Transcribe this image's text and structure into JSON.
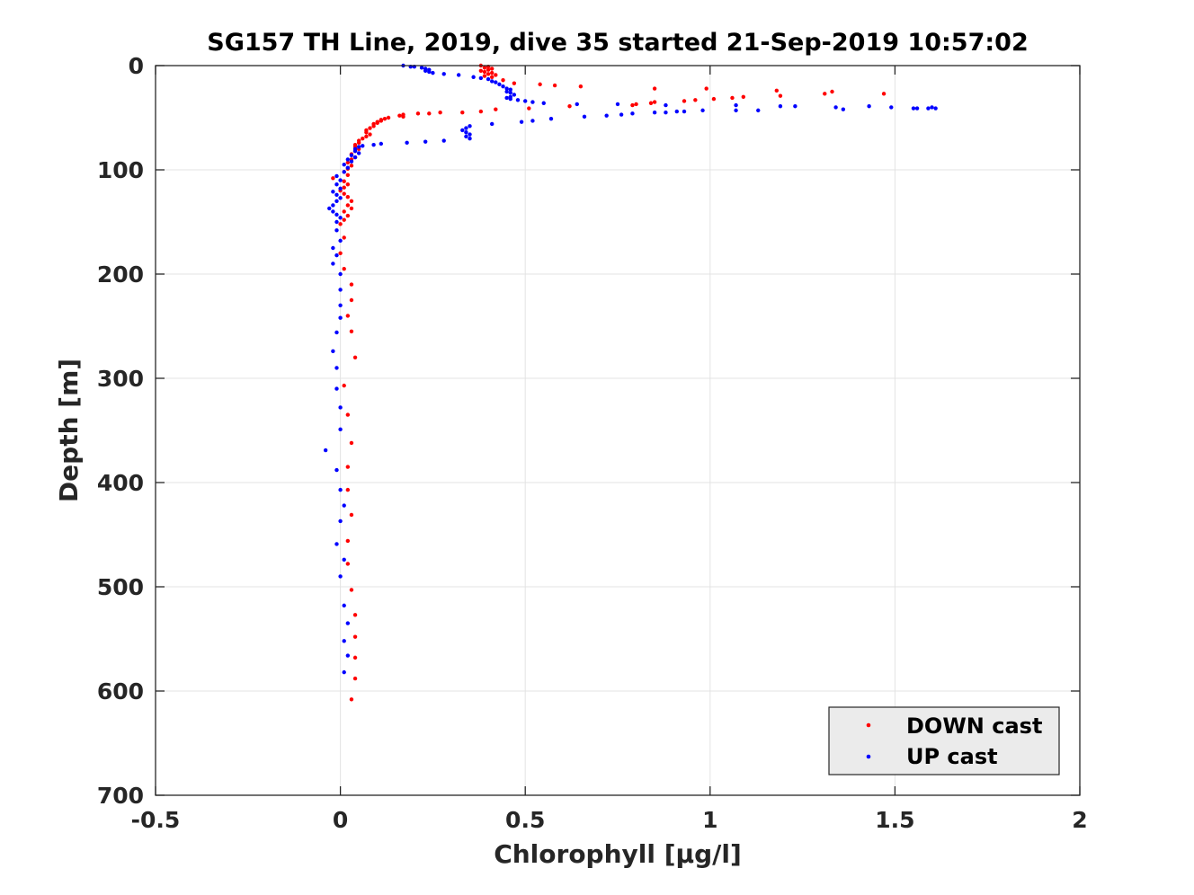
{
  "chart_data": {
    "type": "scatter",
    "title": "SG157 TH Line, 2019, dive 35 started 21-Sep-2019 10:57:02",
    "xlabel": "Chlorophyll [μg/l]",
    "ylabel": "Depth [m]",
    "xlim": [
      -0.5,
      2
    ],
    "ylim": [
      0,
      700
    ],
    "y_reversed": true,
    "xticks": [
      "-0.5",
      "0",
      "0.5",
      "1",
      "1.5",
      "2"
    ],
    "xtick_values": [
      -0.5,
      0,
      0.5,
      1,
      1.5,
      2
    ],
    "yticks": [
      "0",
      "100",
      "200",
      "300",
      "400",
      "500",
      "600",
      "700"
    ],
    "ytick_values": [
      0,
      100,
      200,
      300,
      400,
      500,
      600,
      700
    ],
    "grid": true,
    "legend_position": "bottom-right",
    "series": [
      {
        "name": "DOWN cast",
        "color": "#ff0000",
        "points": [
          [
            0.38,
            0
          ],
          [
            0.4,
            1
          ],
          [
            0.39,
            2
          ],
          [
            0.41,
            3
          ],
          [
            0.4,
            4
          ],
          [
            0.38,
            5
          ],
          [
            0.39,
            6
          ],
          [
            0.41,
            7
          ],
          [
            0.4,
            8
          ],
          [
            0.42,
            9
          ],
          [
            0.39,
            10
          ],
          [
            0.41,
            11
          ],
          [
            0.44,
            14
          ],
          [
            0.47,
            17
          ],
          [
            0.54,
            18
          ],
          [
            0.58,
            19
          ],
          [
            0.65,
            20
          ],
          [
            0.99,
            22
          ],
          [
            0.85,
            22
          ],
          [
            1.18,
            24
          ],
          [
            1.33,
            25
          ],
          [
            1.31,
            27
          ],
          [
            1.47,
            27
          ],
          [
            1.19,
            29
          ],
          [
            1.09,
            30
          ],
          [
            1.06,
            31
          ],
          [
            1.01,
            32
          ],
          [
            0.96,
            33
          ],
          [
            0.93,
            34
          ],
          [
            0.85,
            35
          ],
          [
            0.84,
            36
          ],
          [
            0.8,
            37
          ],
          [
            0.79,
            38
          ],
          [
            0.62,
            39
          ],
          [
            0.51,
            41
          ],
          [
            0.42,
            42
          ],
          [
            0.38,
            44
          ],
          [
            0.33,
            45
          ],
          [
            0.27,
            45
          ],
          [
            0.24,
            46
          ],
          [
            0.21,
            46
          ],
          [
            0.17,
            47
          ],
          [
            0.16,
            48
          ],
          [
            0.17,
            49
          ],
          [
            0.13,
            50
          ],
          [
            0.12,
            51
          ],
          [
            0.11,
            52
          ],
          [
            0.11,
            53
          ],
          [
            0.1,
            54
          ],
          [
            0.1,
            55
          ],
          [
            0.09,
            56
          ],
          [
            0.09,
            58
          ],
          [
            0.08,
            60
          ],
          [
            0.07,
            62
          ],
          [
            0.07,
            64
          ],
          [
            0.08,
            66
          ],
          [
            0.07,
            68
          ],
          [
            0.06,
            70
          ],
          [
            0.05,
            72
          ],
          [
            0.05,
            74
          ],
          [
            0.04,
            76
          ],
          [
            0.04,
            78
          ],
          [
            0.05,
            80
          ],
          [
            0.04,
            82
          ],
          [
            0.03,
            85
          ],
          [
            0.04,
            88
          ],
          [
            0.03,
            90
          ],
          [
            0.02,
            93
          ],
          [
            0.03,
            96
          ],
          [
            0.02,
            99
          ],
          [
            0.01,
            102
          ],
          [
            0.02,
            105
          ],
          [
            -0.02,
            108
          ],
          [
            0.01,
            111
          ],
          [
            0.02,
            114
          ],
          [
            0.01,
            117
          ],
          [
            0.0,
            120
          ],
          [
            0.01,
            123
          ],
          [
            0.02,
            126
          ],
          [
            0.03,
            130
          ],
          [
            0.02,
            134
          ],
          [
            0.03,
            137
          ],
          [
            0.01,
            140
          ],
          [
            0.02,
            144
          ],
          [
            0.01,
            148
          ],
          [
            0.0,
            152
          ],
          [
            0.01,
            165
          ],
          [
            0.0,
            180
          ],
          [
            0.01,
            195
          ],
          [
            0.03,
            210
          ],
          [
            0.03,
            225
          ],
          [
            0.02,
            240
          ],
          [
            0.03,
            255
          ],
          [
            0.04,
            280
          ],
          [
            0.01,
            307
          ],
          [
            0.02,
            335
          ],
          [
            0.03,
            362
          ],
          [
            0.02,
            385
          ],
          [
            0.02,
            407
          ],
          [
            0.03,
            431
          ],
          [
            0.02,
            456
          ],
          [
            0.02,
            478
          ],
          [
            0.03,
            503
          ],
          [
            0.04,
            527
          ],
          [
            0.04,
            548
          ],
          [
            0.04,
            568
          ],
          [
            0.04,
            588
          ],
          [
            0.03,
            608
          ]
        ]
      },
      {
        "name": "UP cast",
        "color": "#0000ff",
        "points": [
          [
            0.17,
            0
          ],
          [
            0.19,
            1
          ],
          [
            0.2,
            1
          ],
          [
            0.22,
            2
          ],
          [
            0.23,
            3
          ],
          [
            0.24,
            4
          ],
          [
            0.23,
            5
          ],
          [
            0.24,
            6
          ],
          [
            0.25,
            7
          ],
          [
            0.28,
            8
          ],
          [
            0.32,
            9
          ],
          [
            0.36,
            11
          ],
          [
            0.38,
            12
          ],
          [
            0.4,
            13
          ],
          [
            0.41,
            15
          ],
          [
            0.42,
            16
          ],
          [
            0.43,
            18
          ],
          [
            0.44,
            20
          ],
          [
            0.45,
            22
          ],
          [
            0.46,
            23
          ],
          [
            0.45,
            25
          ],
          [
            0.46,
            26
          ],
          [
            0.47,
            28
          ],
          [
            0.46,
            30
          ],
          [
            0.45,
            31
          ],
          [
            0.46,
            32
          ],
          [
            0.48,
            33
          ],
          [
            0.5,
            34
          ],
          [
            0.52,
            35
          ],
          [
            0.55,
            36
          ],
          [
            0.64,
            37
          ],
          [
            0.75,
            37
          ],
          [
            0.88,
            38
          ],
          [
            1.07,
            38
          ],
          [
            1.19,
            39
          ],
          [
            1.23,
            39
          ],
          [
            1.34,
            40
          ],
          [
            1.43,
            39
          ],
          [
            1.49,
            40
          ],
          [
            1.55,
            41
          ],
          [
            1.59,
            41
          ],
          [
            1.6,
            40
          ],
          [
            1.61,
            41
          ],
          [
            1.56,
            41
          ],
          [
            1.36,
            42
          ],
          [
            1.13,
            43
          ],
          [
            1.07,
            43
          ],
          [
            0.98,
            43
          ],
          [
            0.93,
            44
          ],
          [
            0.91,
            44
          ],
          [
            0.88,
            45
          ],
          [
            0.85,
            45
          ],
          [
            0.79,
            46
          ],
          [
            0.76,
            47
          ],
          [
            0.72,
            48
          ],
          [
            0.66,
            49
          ],
          [
            0.57,
            51
          ],
          [
            0.52,
            53
          ],
          [
            0.49,
            54
          ],
          [
            0.41,
            56
          ],
          [
            0.35,
            58
          ],
          [
            0.34,
            60
          ],
          [
            0.33,
            62
          ],
          [
            0.34,
            64
          ],
          [
            0.35,
            66
          ],
          [
            0.34,
            68
          ],
          [
            0.35,
            70
          ],
          [
            0.28,
            72
          ],
          [
            0.23,
            73
          ],
          [
            0.18,
            74
          ],
          [
            0.11,
            75
          ],
          [
            0.09,
            76
          ],
          [
            0.06,
            77
          ],
          [
            0.05,
            78
          ],
          [
            0.04,
            80
          ],
          [
            0.04,
            82
          ],
          [
            0.05,
            84
          ],
          [
            0.03,
            86
          ],
          [
            0.04,
            88
          ],
          [
            0.02,
            90
          ],
          [
            0.03,
            92
          ],
          [
            0.01,
            95
          ],
          [
            0.02,
            98
          ],
          [
            0.01,
            102
          ],
          [
            -0.01,
            106
          ],
          [
            0.0,
            110
          ],
          [
            -0.01,
            114
          ],
          [
            0.0,
            118
          ],
          [
            -0.02,
            121
          ],
          [
            -0.01,
            124
          ],
          [
            0.0,
            127
          ],
          [
            -0.01,
            130
          ],
          [
            -0.02,
            134
          ],
          [
            -0.03,
            137
          ],
          [
            -0.02,
            140
          ],
          [
            -0.01,
            143
          ],
          [
            0.0,
            146
          ],
          [
            -0.01,
            150
          ],
          [
            -0.01,
            158
          ],
          [
            0.0,
            168
          ],
          [
            -0.02,
            175
          ],
          [
            -0.01,
            182
          ],
          [
            -0.02,
            190
          ],
          [
            0.0,
            200
          ],
          [
            0.0,
            215
          ],
          [
            0.0,
            230
          ],
          [
            0.0,
            242
          ],
          [
            -0.01,
            256
          ],
          [
            -0.02,
            274
          ],
          [
            -0.01,
            290
          ],
          [
            -0.01,
            310
          ],
          [
            0.0,
            328
          ],
          [
            0.0,
            349
          ],
          [
            -0.04,
            369
          ],
          [
            -0.01,
            388
          ],
          [
            0.0,
            407
          ],
          [
            0.01,
            422
          ],
          [
            0.0,
            437
          ],
          [
            -0.01,
            459
          ],
          [
            0.01,
            474
          ],
          [
            0.0,
            490
          ],
          [
            0.01,
            518
          ],
          [
            0.02,
            535
          ],
          [
            0.01,
            552
          ],
          [
            0.02,
            566
          ],
          [
            0.01,
            582
          ]
        ]
      }
    ]
  }
}
